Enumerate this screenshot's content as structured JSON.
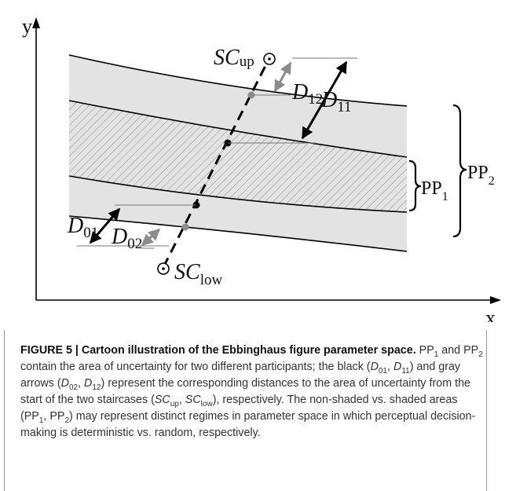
{
  "figure": {
    "axes": {
      "x": "x",
      "y": "y"
    },
    "labels": {
      "sc_up": {
        "base": "SC",
        "sub": "up"
      },
      "sc_low": {
        "base": "SC",
        "sub": "low"
      },
      "d11": {
        "base": "D",
        "sub": "11"
      },
      "d12": {
        "base": "D",
        "sub": "12"
      },
      "d01": {
        "base": "D",
        "sub": "01"
      },
      "d02": {
        "base": "D",
        "sub": "02"
      },
      "pp1": {
        "base": "PP",
        "sub": "1"
      },
      "pp2": {
        "base": "PP",
        "sub": "2"
      }
    },
    "colors": {
      "shaded_band": "#e3e3e3",
      "hatch": "#8a8a8a",
      "black_arrow": "#000000",
      "gray_arrow": "#8c8c8c"
    }
  },
  "caption": {
    "label": "FIGURE 5 | Cartoon illustration of the Ebbinghaus figure parameter space.",
    "p1_a": "PP",
    "p1_a_sub": "1",
    "p1_b": " and PP",
    "p1_b_sub": "2",
    "p1_c": " contain the area of uncertainty for two different participants; the black (",
    "d01_base": "D",
    "d01_sub": "01",
    "sep1": ", ",
    "d11_base": "D",
    "d11_sub": "11",
    "p2": ") and gray arrows (",
    "d02_base": "D",
    "d02_sub": "02",
    "sep2": ", ",
    "d12_base": "D",
    "d12_sub": "12",
    "p3": ") represent the corresponding distances to the area of uncertainty from the start of the two staircases (",
    "scup_base": "SC",
    "scup_sub": "up",
    "sep3": ", ",
    "sclow_base": "SC",
    "sclow_sub": "low",
    "p4": "), respectively. The non-shaded vs. shaded areas (PP",
    "p4_sub1": "1",
    "p4_b": ", PP",
    "p4_sub2": "2",
    "p4_c": ") may represent distinct regimes in parameter space in which perceptual decision-making is deterministic vs. random, respectively."
  }
}
